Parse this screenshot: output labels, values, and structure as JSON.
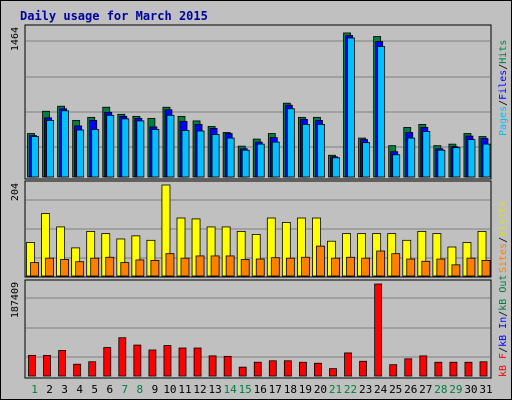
{
  "title": "Daily usage for March 2015",
  "panels": {
    "top": {
      "max_label": "1464",
      "legend": {
        "pages": "Pages",
        "files": "Files",
        "hits": "Hits",
        "sep": "/"
      }
    },
    "middle": {
      "max_label": "204",
      "legend": {
        "visits": "Visits",
        "sites": "Sites",
        "sep": "/"
      }
    },
    "bottom": {
      "max_label": "187409",
      "legend": {
        "kb_f": "kB F",
        "kb_in": "kB In",
        "kb_out": "kB Out",
        "sep": "/"
      }
    }
  },
  "colors": {
    "hits": "#008040",
    "files": "#0000ff",
    "pages": "#00c0ff",
    "visits": "#ffff00",
    "sites": "#ff8000",
    "kbytes": "#ff0000",
    "weekday_label": "#000000",
    "weekend_label": "#008040",
    "title": "#0000a0"
  },
  "chart_data": {
    "type": "bar",
    "title": "Daily usage for March 2015",
    "categories": [
      "1",
      "2",
      "3",
      "4",
      "5",
      "6",
      "7",
      "8",
      "9",
      "10",
      "11",
      "12",
      "13",
      "14",
      "15",
      "16",
      "17",
      "18",
      "19",
      "20",
      "21",
      "22",
      "23",
      "24",
      "25",
      "26",
      "27",
      "28",
      "29",
      "30",
      "31"
    ],
    "weekend_days": [
      "1",
      "7",
      "8",
      "14",
      "15",
      "21",
      "22",
      "28",
      "29"
    ],
    "panels": [
      {
        "name": "top",
        "ylim": [
          0,
          1464
        ],
        "max_label": "1464",
        "series": [
          {
            "name": "Hits",
            "values": [
              430,
              650,
              700,
              560,
              590,
              690,
              620,
              600,
              580,
              690,
              600,
              555,
              500,
              440,
              305,
              375,
              430,
              730,
              590,
              590,
              215,
              1425,
              385,
              1390,
              310,
              490,
              520,
              310,
              325,
              430,
              400
            ]
          },
          {
            "name": "Files",
            "values": [
              410,
              585,
              675,
              505,
              560,
              640,
              600,
              580,
              495,
              665,
              550,
              520,
              480,
              430,
              280,
              345,
              390,
              710,
              570,
              560,
              200,
              1400,
              370,
              1340,
              250,
              440,
              490,
              280,
              300,
              405,
              380
            ]
          },
          {
            "name": "Pages",
            "values": [
              400,
              560,
              655,
              465,
              470,
              610,
              575,
              555,
              470,
              610,
              460,
              455,
              420,
              385,
              265,
              325,
              345,
              675,
              520,
              520,
              190,
              1375,
              340,
              1290,
              220,
              385,
              450,
              265,
              290,
              370,
              325
            ]
          }
        ]
      },
      {
        "name": "middle",
        "ylim": [
          0,
          204
        ],
        "max_label": "204",
        "series": [
          {
            "name": "Visits",
            "values": [
              75,
              140,
              110,
              63,
              100,
              95,
              83,
              90,
              80,
              204,
              130,
              128,
              110,
              110,
              100,
              93,
              130,
              120,
              130,
              130,
              78,
              95,
              95,
              95,
              95,
              80,
              100,
              95,
              65,
              75,
              100
            ]
          },
          {
            "name": "Sites",
            "values": [
              30,
              40,
              37,
              32,
              40,
              42,
              30,
              36,
              35,
              50,
              40,
              45,
              45,
              45,
              37,
              38,
              41,
              40,
              42,
              67,
              40,
              42,
              40,
              56,
              50,
              38,
              33,
              38,
              25,
              40,
              35
            ]
          }
        ]
      },
      {
        "name": "bottom",
        "ylim": [
          0,
          187409
        ],
        "max_label": "187409",
        "series": [
          {
            "name": "kB F",
            "values": [
              0,
              0,
              0,
              0,
              0,
              0,
              0,
              0,
              0,
              0,
              0,
              0,
              0,
              0,
              0,
              0,
              0,
              0,
              0,
              0,
              0,
              0,
              0,
              0,
              0,
              0,
              0,
              0,
              0,
              0,
              0
            ]
          },
          {
            "name": "kB In",
            "values": [
              0,
              0,
              0,
              0,
              0,
              0,
              0,
              0,
              0,
              0,
              0,
              0,
              0,
              0,
              0,
              0,
              0,
              0,
              0,
              0,
              0,
              0,
              0,
              0,
              0,
              0,
              0,
              0,
              0,
              0,
              0
            ]
          },
          {
            "name": "kB Out",
            "values": [
              42000,
              42000,
              52000,
              24000,
              29000,
              58000,
              78000,
              63000,
              53000,
              62000,
              57000,
              57000,
              41000,
              40000,
              18000,
              28000,
              31000,
              31000,
              28000,
              26000,
              15000,
              47000,
              30000,
              187409,
              23000,
              35000,
              41000,
              28000,
              28000,
              28000,
              29000
            ]
          }
        ]
      }
    ]
  }
}
